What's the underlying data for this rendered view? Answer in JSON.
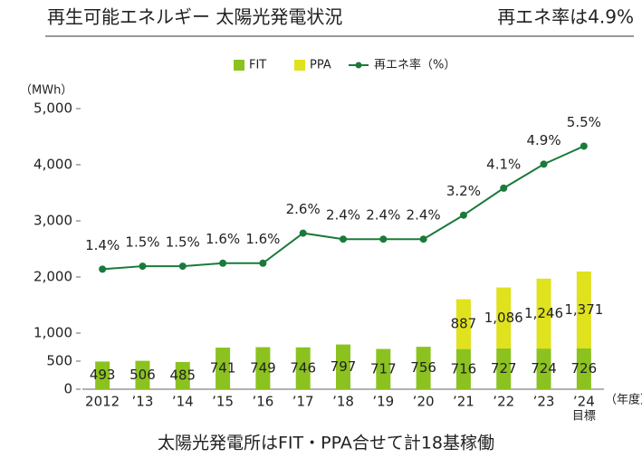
{
  "chart_data": {
    "type": "bar_line",
    "title": "再生可能エネルギー 太陽光発電状況",
    "headline": "再エネ率は4.9%",
    "footer": "太陽光発電所はFIT・PPA合せて計18基稼働",
    "y_unit": "（MWh）",
    "x_unit": "（年度）",
    "target_label": "目標",
    "categories": [
      "2012",
      "’13",
      "’14",
      "’15",
      "’16",
      "’17",
      "’18",
      "’19",
      "’20",
      "’21",
      "’22",
      "’23",
      "’24"
    ],
    "series": [
      {
        "name": "FIT",
        "color": "#8cc21f",
        "values": [
          493,
          506,
          485,
          741,
          749,
          746,
          797,
          717,
          756,
          716,
          727,
          724,
          726
        ]
      },
      {
        "name": "PPA",
        "color": "#dfe21c",
        "values": [
          null,
          null,
          null,
          null,
          null,
          null,
          null,
          null,
          null,
          887,
          1086,
          1246,
          1371
        ],
        "value_labels": [
          null,
          null,
          null,
          null,
          null,
          null,
          null,
          null,
          null,
          "887",
          "1,086",
          "1,246",
          "1,371"
        ]
      },
      {
        "name": "再エネ率（%）",
        "color": "#1a7a3a",
        "type": "line",
        "axis": "y2",
        "values": [
          1.4,
          1.5,
          1.5,
          1.6,
          1.6,
          2.6,
          2.4,
          2.4,
          2.4,
          3.2,
          4.1,
          4.9,
          5.5
        ],
        "value_labels": [
          "1.4%",
          "1.5%",
          "1.5%",
          "1.6%",
          "1.6%",
          "2.6%",
          "2.4%",
          "2.4%",
          "2.4%",
          "3.2%",
          "4.1%",
          "4.9%",
          "5.5%"
        ]
      }
    ],
    "ylim": [
      0,
      5000
    ],
    "yticks": [
      0,
      500,
      {
        "value": 1000,
        "label": "1,000"
      },
      {
        "value": 2000,
        "label": "2,000"
      },
      {
        "value": 3000,
        "label": "3,000"
      },
      {
        "value": 4000,
        "label": "4,000"
      },
      {
        "value": 5000,
        "label": "5,000"
      }
    ],
    "y2lim": [
      -2.6,
      6.75
    ],
    "legend": "top"
  }
}
